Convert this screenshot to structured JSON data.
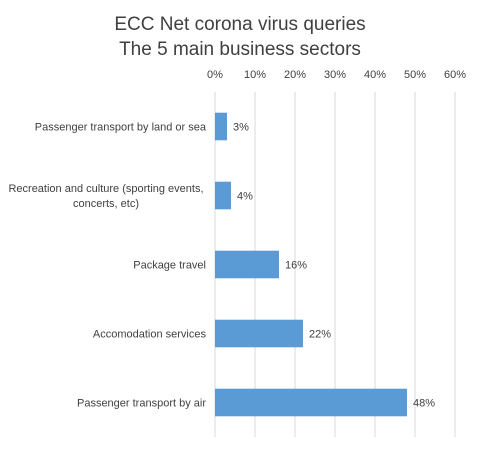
{
  "chart_data": {
    "type": "bar",
    "orientation": "horizontal",
    "title": [
      "ECC Net corona virus queries",
      "The 5 main business sectors"
    ],
    "categories": [
      [
        "Passenger transport by land or sea"
      ],
      [
        "Recreation and culture (sporting events,",
        "concerts, etc)"
      ],
      [
        "Package travel"
      ],
      [
        "Accomodation services"
      ],
      [
        "Passenger transport  by air"
      ]
    ],
    "values": [
      3,
      4,
      16,
      22,
      48
    ],
    "data_labels": [
      "3%",
      "4%",
      "16%",
      "22%",
      "48%"
    ],
    "xlim": [
      0,
      60
    ],
    "x_ticks": [
      "0%",
      "10%",
      "20%",
      "30%",
      "40%",
      "50%",
      "60%"
    ],
    "x_axis_position": "top",
    "grid": true,
    "legend": "none",
    "bar_color": "#5b9bd5"
  }
}
